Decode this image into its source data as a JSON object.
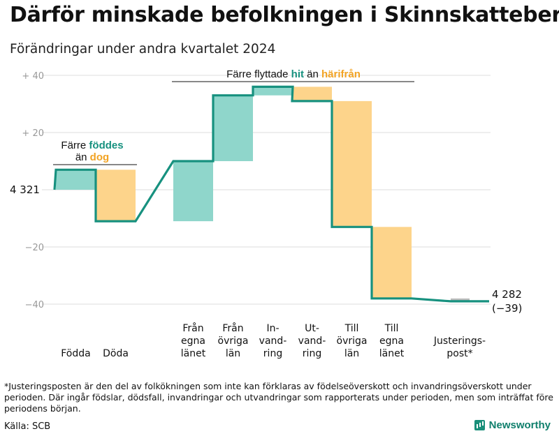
{
  "title": "Därför minskade befolkningen i Skinnskatteberg",
  "subtitle": "Förändringar under andra kvartalet 2024",
  "colors": {
    "positive": "#8fd6cb",
    "negative": "#fdd48b",
    "line": "#17917f",
    "positive_text": "#17917f",
    "negative_text": "#f2a323",
    "adjust": "#bbbbbb",
    "grid": "#dddddd"
  },
  "chart_data": {
    "type": "bar",
    "subtype": "waterfall",
    "start_value": 4321,
    "start_label": "4 321",
    "end_value": 4282,
    "end_label": "4 282",
    "end_change_label": "(−39)",
    "ylim": [
      -45,
      43
    ],
    "yticks": [
      {
        "value": 40,
        "label": "+  40"
      },
      {
        "value": 20,
        "label": "+  20"
      },
      {
        "value": 0,
        "label": ""
      },
      {
        "value": -20,
        "label": "−20"
      },
      {
        "value": -40,
        "label": "−40"
      }
    ],
    "categories": [
      {
        "lines": [
          "Födda"
        ],
        "change": 7
      },
      {
        "lines": [
          "Döda"
        ],
        "change": -18
      },
      {
        "lines": [
          "Från",
          "egna",
          "länet"
        ],
        "change": 21
      },
      {
        "lines": [
          "Från",
          "övriga",
          "län"
        ],
        "change": 23
      },
      {
        "lines": [
          "In-",
          "vand-",
          "ring"
        ],
        "change": 3
      },
      {
        "lines": [
          "Ut-",
          "vand-",
          "ring"
        ],
        "change": -5
      },
      {
        "lines": [
          "Till",
          "övriga",
          "län"
        ],
        "change": -44
      },
      {
        "lines": [
          "Till",
          "egna",
          "länet"
        ],
        "change": -25
      },
      {
        "lines": [
          "Justerings-",
          "post*"
        ],
        "change": -1
      }
    ],
    "annotations": {
      "births_deaths": {
        "line1": "Färre",
        "word1": "föddes",
        "line2": "än",
        "word2": "dog"
      },
      "migration": {
        "prefix": "Färre flyttade",
        "word1": "hit",
        "mid": "än",
        "word2": "härifrån"
      }
    }
  },
  "footnote": "*Justeringsposten är den del av folkökningen som inte kan förklaras av födelseöverskott och invandringsöverskott under perioden. Där ingår födslar, dödsfall, invandringar och utvandringar som rapporterats under perioden, men som inträffat före periodens början.",
  "source": "Källa: SCB",
  "brand": "Newsworthy"
}
